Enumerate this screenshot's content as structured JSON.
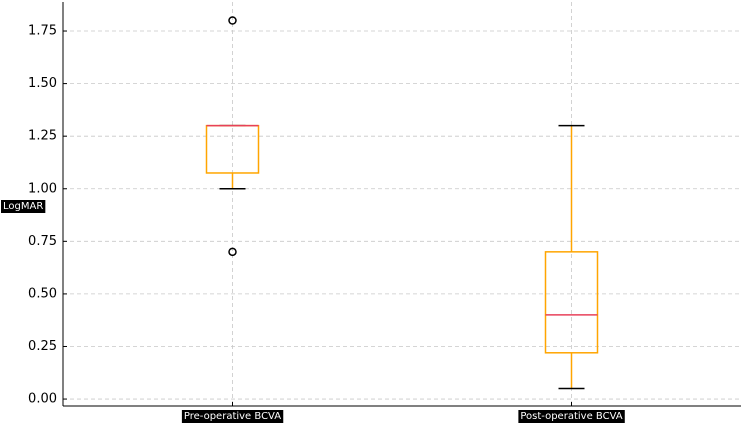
{
  "chart_data": {
    "type": "box",
    "ylabel": "LogMAR",
    "categories": [
      "Pre-operative BCVA",
      "Post-operative BCVA"
    ],
    "boxes": [
      {
        "whislo": 1.0,
        "q1": 1.075,
        "med": 1.3,
        "q3": 1.3,
        "whishi": 1.3,
        "fliers": [
          1.8,
          0.7
        ]
      },
      {
        "whislo": 0.05,
        "q1": 0.22,
        "med": 0.4,
        "q3": 0.7,
        "whishi": 1.3,
        "fliers": []
      }
    ],
    "box_color": "#ffa500",
    "median_color": "#e8405a",
    "flier_color": "#000000",
    "xlim": [
      0.5,
      2.5
    ],
    "ylim": [
      -0.033,
      1.888
    ],
    "yticks": [
      {
        "value": 0,
        "label": "0.00"
      },
      0.25,
      {
        "value": 0.5,
        "label": "0.50"
      },
      0.75,
      {
        "value": 1,
        "label": "1.00"
      },
      1.25,
      {
        "value": 1.5,
        "label": "1.50"
      },
      1.75
    ],
    "grid": true
  }
}
